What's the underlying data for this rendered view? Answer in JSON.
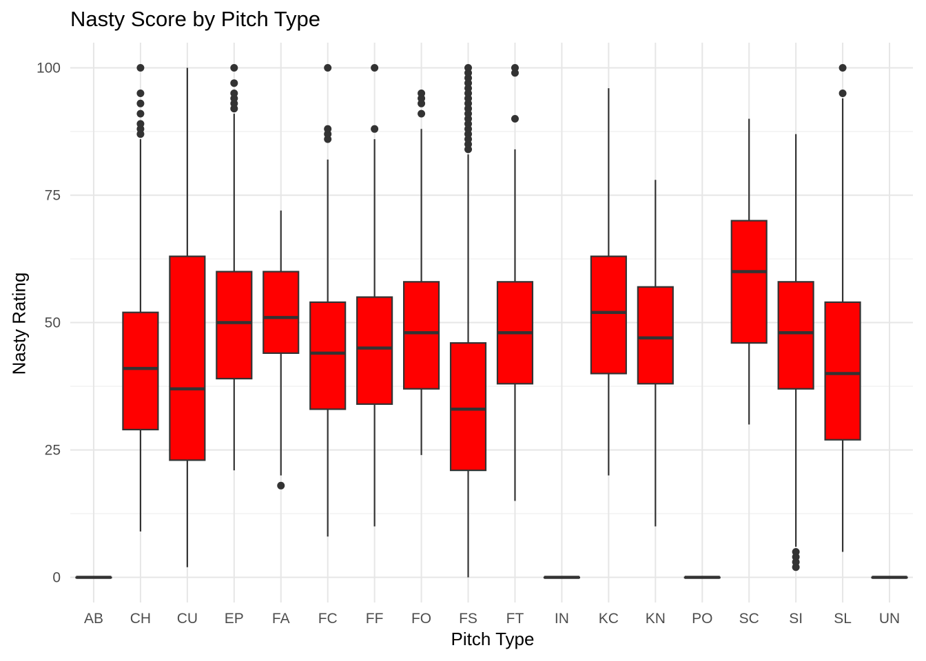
{
  "chart_data": {
    "type": "box",
    "title": "Nasty Score by Pitch Type",
    "xlabel": "Pitch Type",
    "ylabel": "Nasty Rating",
    "ylim": [
      -5,
      105
    ],
    "yticks": [
      0,
      25,
      50,
      75,
      100
    ],
    "grid": true,
    "legend": "none",
    "colors": {
      "fill": "#ff0000",
      "stroke": "#333333",
      "outlier": "#333333",
      "grid_major": "#e6e6e6",
      "grid_minor": "#f2f2f2"
    },
    "categories": [
      "AB",
      "CH",
      "CU",
      "EP",
      "FA",
      "FC",
      "FF",
      "FO",
      "FS",
      "FT",
      "IN",
      "KC",
      "KN",
      "PO",
      "SC",
      "SI",
      "SL",
      "UN"
    ],
    "boxes": [
      {
        "cat": "AB",
        "min": 0,
        "q1": 0,
        "median": 0,
        "q3": 0,
        "max": 0,
        "outliers": []
      },
      {
        "cat": "CH",
        "min": 9,
        "q1": 29,
        "median": 41,
        "q3": 52,
        "max": 86,
        "outliers": [
          87,
          88,
          89,
          91,
          93,
          95,
          100
        ]
      },
      {
        "cat": "CU",
        "min": 2,
        "q1": 23,
        "median": 37,
        "q3": 63,
        "max": 100,
        "outliers": []
      },
      {
        "cat": "EP",
        "min": 21,
        "q1": 39,
        "median": 50,
        "q3": 60,
        "max": 91,
        "outliers": [
          92,
          93,
          94,
          95,
          97,
          100
        ]
      },
      {
        "cat": "FA",
        "min": 20,
        "q1": 44,
        "median": 51,
        "q3": 60,
        "max": 72,
        "outliers": [
          18
        ]
      },
      {
        "cat": "FC",
        "min": 8,
        "q1": 33,
        "median": 44,
        "q3": 54,
        "max": 82,
        "outliers": [
          86,
          87,
          88,
          100
        ]
      },
      {
        "cat": "FF",
        "min": 10,
        "q1": 34,
        "median": 45,
        "q3": 55,
        "max": 86,
        "outliers": [
          88,
          100
        ]
      },
      {
        "cat": "FO",
        "min": 24,
        "q1": 37,
        "median": 48,
        "q3": 58,
        "max": 88,
        "outliers": [
          91,
          93,
          94,
          95
        ]
      },
      {
        "cat": "FS",
        "min": 0,
        "q1": 21,
        "median": 33,
        "q3": 46,
        "max": 83,
        "outliers": [
          84,
          85,
          86,
          87,
          88,
          89,
          90,
          91,
          92,
          93,
          94,
          95,
          96,
          97,
          98,
          99,
          100
        ]
      },
      {
        "cat": "FT",
        "min": 15,
        "q1": 38,
        "median": 48,
        "q3": 58,
        "max": 84,
        "outliers": [
          90,
          99,
          100
        ]
      },
      {
        "cat": "IN",
        "min": 0,
        "q1": 0,
        "median": 0,
        "q3": 0,
        "max": 0,
        "outliers": []
      },
      {
        "cat": "KC",
        "min": 20,
        "q1": 40,
        "median": 52,
        "q3": 63,
        "max": 96,
        "outliers": []
      },
      {
        "cat": "KN",
        "min": 10,
        "q1": 38,
        "median": 47,
        "q3": 57,
        "max": 78,
        "outliers": []
      },
      {
        "cat": "PO",
        "min": 0,
        "q1": 0,
        "median": 0,
        "q3": 0,
        "max": 0,
        "outliers": []
      },
      {
        "cat": "SC",
        "min": 30,
        "q1": 46,
        "median": 60,
        "q3": 70,
        "max": 90,
        "outliers": []
      },
      {
        "cat": "SI",
        "min": 6,
        "q1": 37,
        "median": 48,
        "q3": 58,
        "max": 87,
        "outliers": [
          2,
          3,
          4,
          5
        ]
      },
      {
        "cat": "SL",
        "min": 5,
        "q1": 27,
        "median": 40,
        "q3": 54,
        "max": 94,
        "outliers": [
          95,
          100
        ]
      },
      {
        "cat": "UN",
        "min": 0,
        "q1": 0,
        "median": 0,
        "q3": 0,
        "max": 0,
        "outliers": []
      }
    ]
  }
}
